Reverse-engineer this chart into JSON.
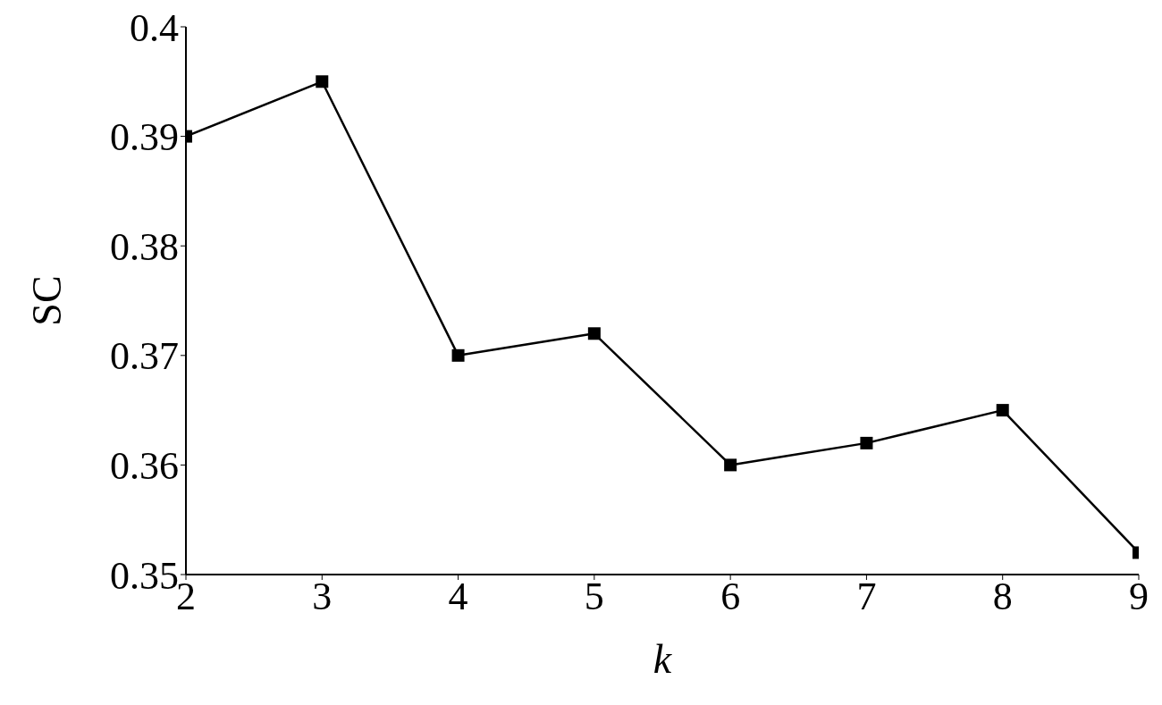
{
  "chart_data": {
    "type": "line",
    "xlabel": "k",
    "ylabel": "SC",
    "x": [
      2,
      3,
      4,
      5,
      6,
      7,
      8,
      9
    ],
    "values": [
      0.39,
      0.395,
      0.37,
      0.372,
      0.36,
      0.362,
      0.365,
      0.352
    ],
    "color": "#000000",
    "marker": "square",
    "xlim": [
      2,
      9
    ],
    "xticks": [
      2,
      3,
      4,
      5,
      6,
      7,
      8,
      9
    ],
    "ylim": [
      0.35,
      0.4
    ],
    "yticks": [
      0.35,
      0.36,
      0.37,
      0.38,
      0.39,
      0.4
    ],
    "grid": false,
    "legend": false
  }
}
